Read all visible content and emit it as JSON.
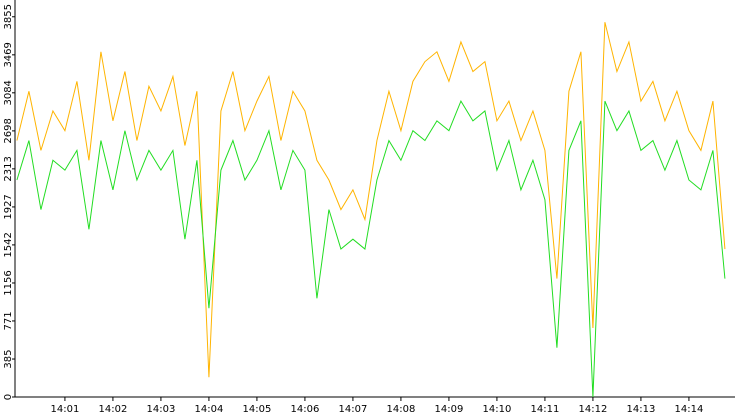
{
  "chart_data": {
    "type": "line",
    "x": [
      0,
      0.25,
      0.5,
      0.75,
      1,
      1.25,
      1.5,
      1.75,
      2,
      2.25,
      2.5,
      2.75,
      3,
      3.25,
      3.5,
      3.75,
      4,
      4.25,
      4.5,
      4.75,
      5,
      5.25,
      5.5,
      5.75,
      6,
      6.25,
      6.5,
      6.75,
      7,
      7.25,
      7.5,
      7.75,
      8,
      8.25,
      8.5,
      8.75,
      9,
      9.25,
      9.5,
      9.75,
      10,
      10.25,
      10.5,
      10.75,
      11,
      11.25,
      11.5,
      11.75,
      12,
      12.25,
      12.5,
      12.75,
      13,
      13.25,
      13.5,
      13.75,
      14,
      14.25,
      14.5,
      14.75
    ],
    "series": [
      {
        "color": "#ffb400",
        "values": [
          2600,
          3100,
          2500,
          2900,
          2700,
          3200,
          2400,
          3500,
          2800,
          3300,
          2600,
          3150,
          2900,
          3250,
          2550,
          3100,
          200,
          2900,
          3300,
          2700,
          3000,
          3250,
          2600,
          3100,
          2900,
          2400,
          2200,
          1900,
          2100,
          1800,
          2600,
          3100,
          2700,
          3200,
          3400,
          3500,
          3200,
          3600,
          3300,
          3400,
          2800,
          3000,
          2600,
          2900,
          2500,
          1200,
          3100,
          3500,
          700,
          3800,
          3300,
          3600,
          3000,
          3200,
          2800,
          3100,
          2700,
          2500,
          3000,
          1500
        ]
      },
      {
        "color": "#22dd22",
        "values": [
          2200,
          2600,
          1900,
          2400,
          2300,
          2500,
          1700,
          2600,
          2100,
          2700,
          2200,
          2500,
          2300,
          2500,
          1600,
          2400,
          900,
          2300,
          2600,
          2200,
          2400,
          2700,
          2100,
          2500,
          2300,
          1000,
          1900,
          1500,
          1600,
          1500,
          2200,
          2600,
          2400,
          2700,
          2600,
          2800,
          2700,
          3000,
          2800,
          2900,
          2300,
          2600,
          2100,
          2400,
          2000,
          500,
          2500,
          2800,
          0,
          3000,
          2700,
          2900,
          2500,
          2600,
          2300,
          2600,
          2200,
          2100,
          2500,
          1200
        ]
      }
    ],
    "xlim": [
      -0.04,
      14.96
    ],
    "xticks": [
      {
        "value": 1,
        "label": "14:01"
      },
      {
        "value": 2,
        "label": "14:02"
      },
      {
        "value": 3,
        "label": "14:03"
      },
      {
        "value": 4,
        "label": "14:04"
      },
      {
        "value": 5,
        "label": "14:05"
      },
      {
        "value": 6,
        "label": "14:06"
      },
      {
        "value": 7,
        "label": "14:07"
      },
      {
        "value": 8,
        "label": "14:08"
      },
      {
        "value": 9,
        "label": "14:09"
      },
      {
        "value": 10,
        "label": "14:10"
      },
      {
        "value": 11,
        "label": "14:11"
      },
      {
        "value": 12,
        "label": "14:12"
      },
      {
        "value": 13,
        "label": "14:13"
      },
      {
        "value": 14,
        "label": "14:14"
      }
    ],
    "ylim": [
      0,
      4025
    ],
    "yticks": [
      0,
      385,
      771,
      1156,
      1542,
      1927,
      2313,
      2698,
      3084,
      3469,
      3855
    ]
  }
}
